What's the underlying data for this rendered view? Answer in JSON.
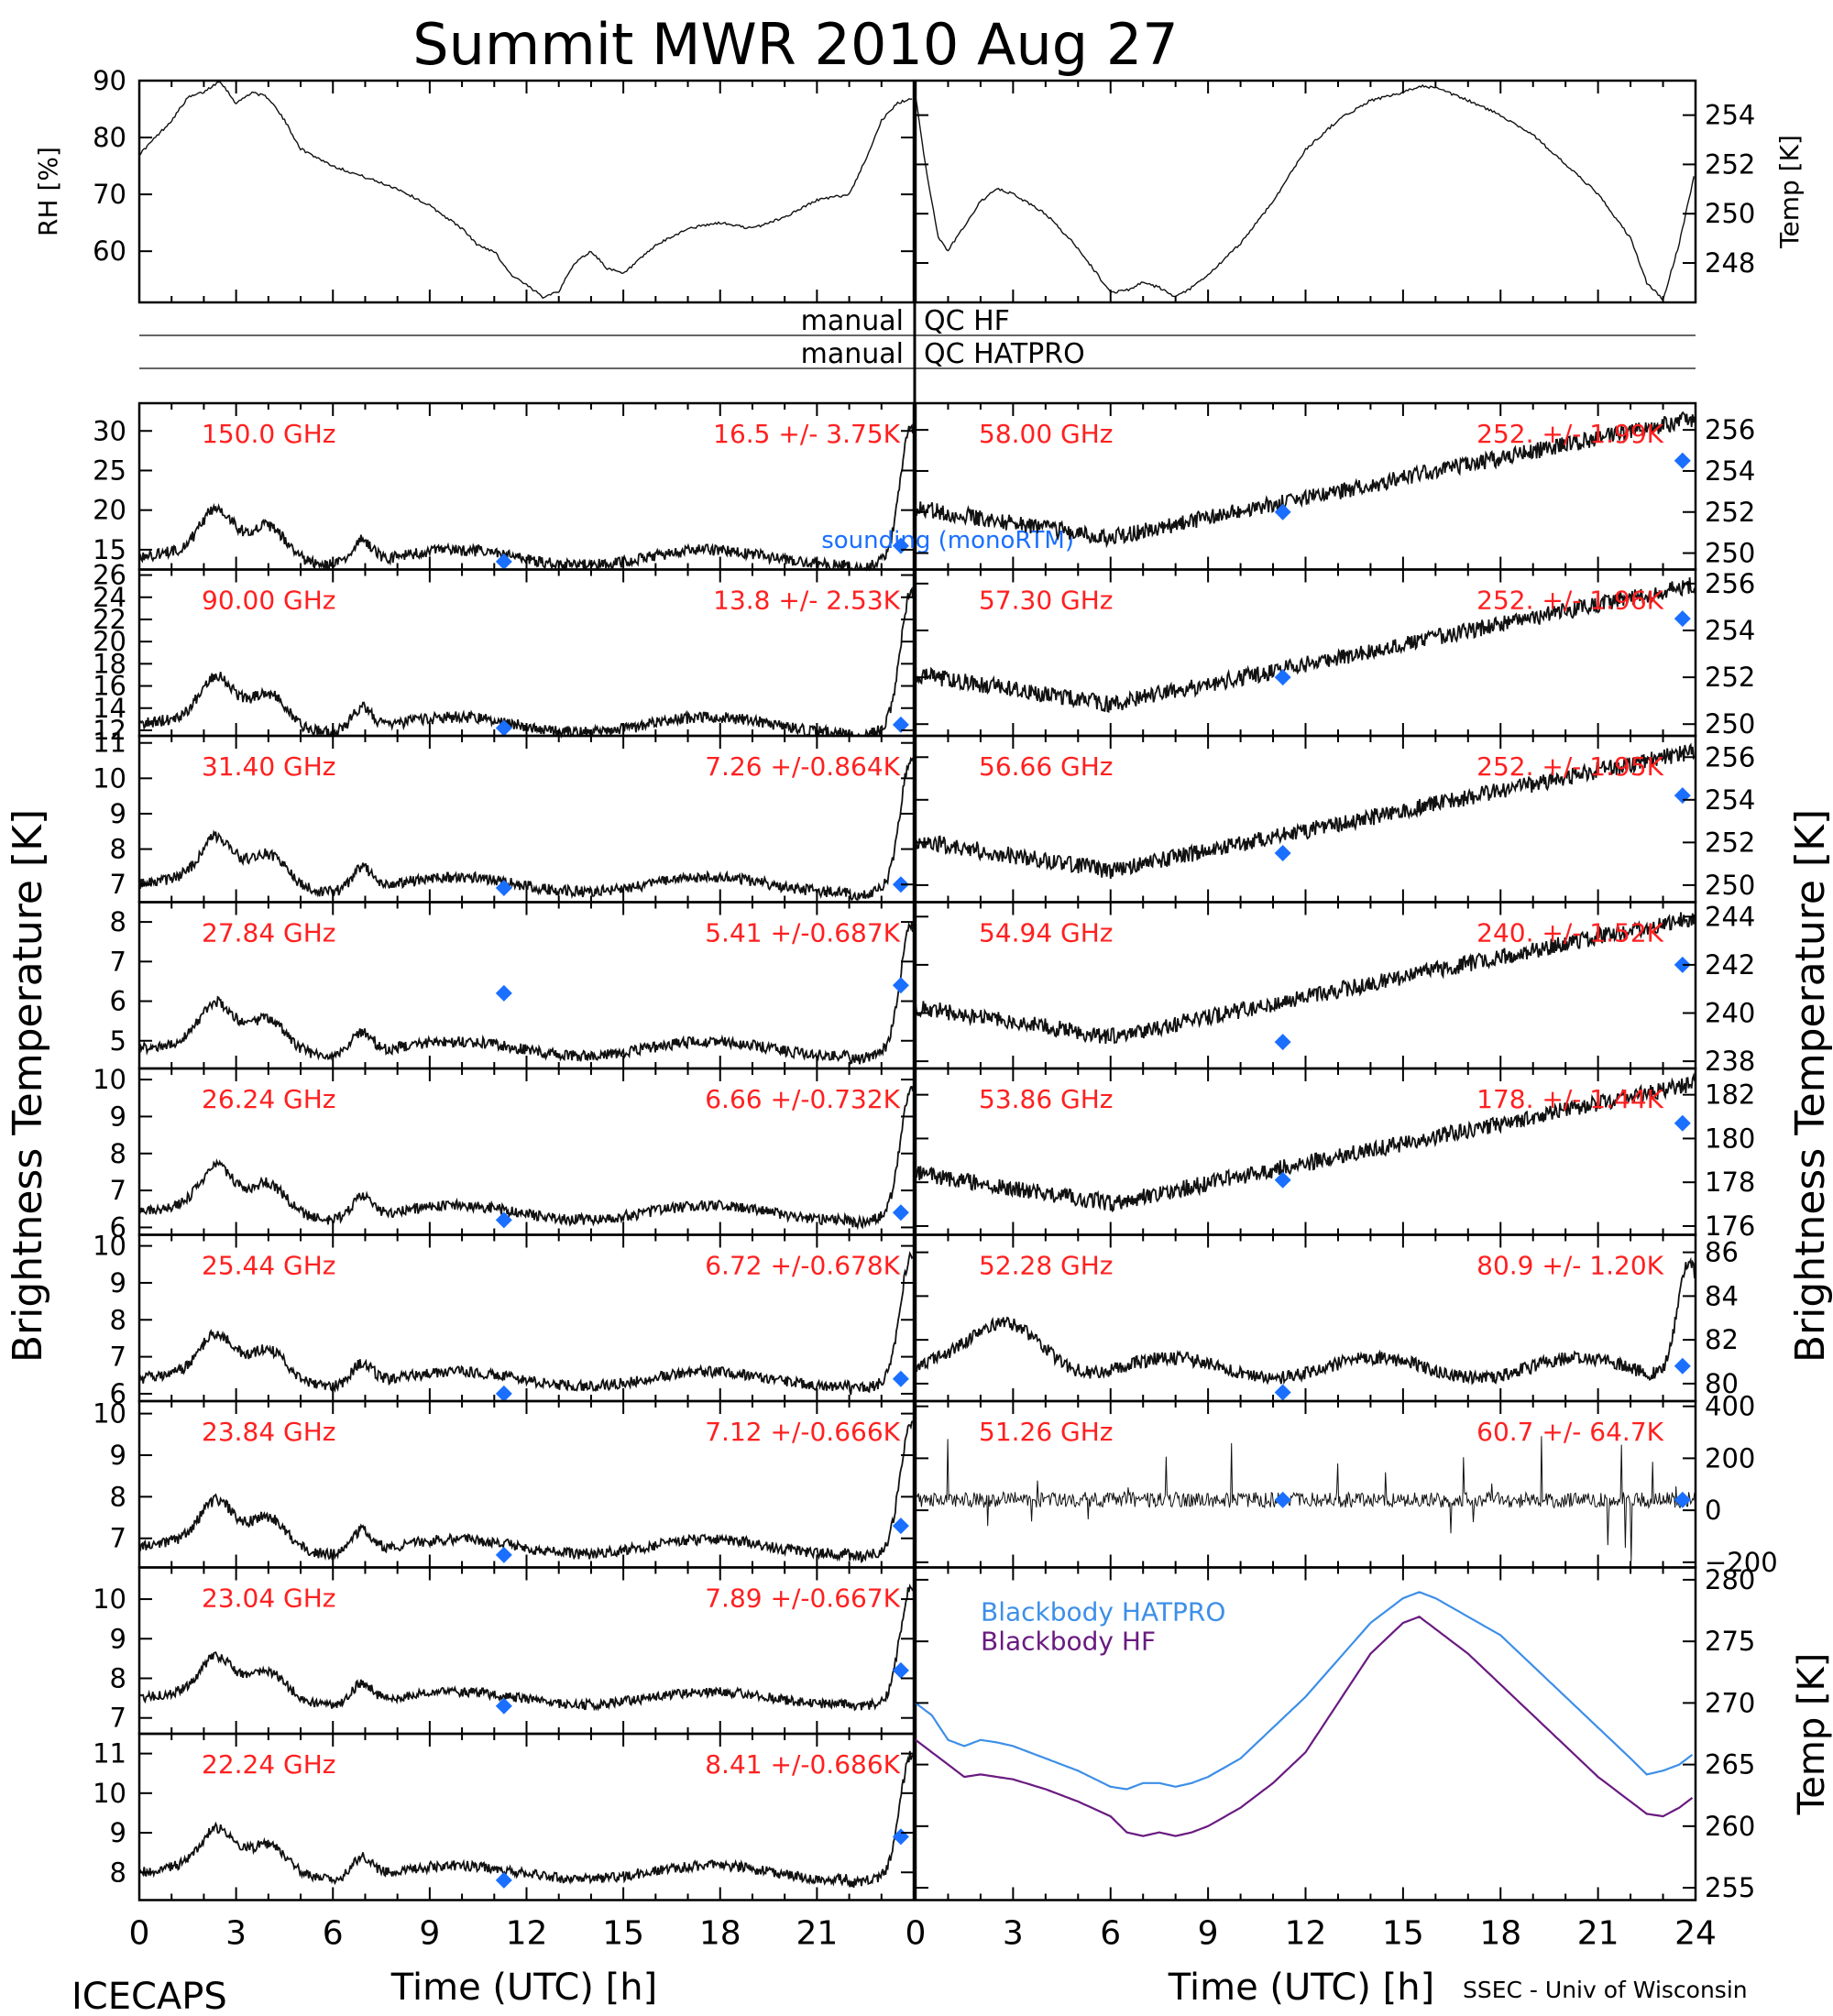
{
  "figure": {
    "title": "Summit MWR 2010 Aug 27",
    "left_ylabel": "Brightness Temperature [K]",
    "right_ylabel": "Brightness Temperature [K]",
    "footer_left": "ICECAPS",
    "footer_right": "SSEC - Univ of Wisconsin",
    "xlabel": "Time (UTC) [h]",
    "ink_color": "#000000",
    "label_color": "#ff2020",
    "marker_color": "#1a6fff",
    "hatpro_color": "#3d8fe8",
    "hf_color": "#6a1a80"
  },
  "chart_data": [
    {
      "id": "rh",
      "type": "line",
      "ylabel": "RH [%]",
      "yticks": [
        60,
        70,
        80,
        90
      ],
      "ylim": [
        51,
        90
      ],
      "xlim": [
        0,
        24
      ],
      "x": [
        0,
        0.5,
        1,
        1.5,
        2,
        2.5,
        3,
        3.5,
        4,
        4.5,
        5,
        6,
        7,
        8,
        9,
        10,
        10.5,
        11,
        11.5,
        12,
        12.5,
        13,
        13.5,
        14,
        14.5,
        15,
        16,
        17,
        18,
        19,
        20,
        21,
        22,
        22.5,
        23,
        23.5,
        24
      ],
      "values": [
        77,
        80,
        83,
        87,
        88,
        90,
        86,
        88,
        87,
        83,
        78,
        75,
        73,
        71,
        68,
        64,
        61,
        60,
        56,
        54,
        52,
        53,
        58,
        60,
        57,
        56,
        61,
        64,
        65,
        64,
        66,
        69,
        70,
        76,
        83,
        86,
        87
      ]
    },
    {
      "id": "temp",
      "type": "line",
      "ylabel": "Temp [K]",
      "yticks": [
        248,
        250,
        252,
        254
      ],
      "ylim": [
        246.4,
        255.4
      ],
      "xlim": [
        0,
        24
      ],
      "x": [
        0,
        0.3,
        0.7,
        1,
        1.5,
        2,
        2.5,
        3,
        4,
        5,
        5.5,
        6,
        6.5,
        7,
        7.5,
        8,
        8.5,
        9,
        10,
        11,
        12,
        13,
        14,
        15,
        15.5,
        16,
        17,
        18,
        19,
        20,
        21,
        22,
        22.5,
        23,
        23.5,
        24
      ],
      "values": [
        254.8,
        252,
        249,
        248.5,
        249.5,
        250.5,
        251,
        250.8,
        250,
        248.6,
        247.7,
        246.8,
        246.9,
        247.2,
        247,
        246.6,
        247,
        247.5,
        248.8,
        250.5,
        252.6,
        253.8,
        254.6,
        254.9,
        255.2,
        255.1,
        254.6,
        254,
        253.2,
        252,
        250.8,
        249,
        247.2,
        246.5,
        248.8,
        251.8
      ]
    }
  ],
  "qc": {
    "row1_left": "manual",
    "row1_right": "QC HF",
    "row2_left": "manual",
    "row2_right": "QC HATPRO"
  },
  "channels_left": [
    {
      "freq": "150.0 GHz",
      "stat": "16.5 +/-  3.75K",
      "yticks": [
        15,
        20,
        25,
        30
      ],
      "ytick_labels": [
        "15",
        "20",
        "25",
        "30"
      ],
      "ylim": [
        12.5,
        33.5
      ],
      "base": 14,
      "sounding": [
        [
          11.3,
          13.5
        ],
        [
          23.6,
          15.5
        ]
      ],
      "sounding_label": "sounding (monoRTM)"
    },
    {
      "freq": "90.00 GHz",
      "stat": "13.8 +/-  2.53K",
      "yticks": [
        12,
        14,
        16,
        18,
        20,
        22,
        24,
        26
      ],
      "ytick_labels": [
        "12",
        "14",
        "16",
        "18",
        "20",
        "22",
        "24",
        "26"
      ],
      "ylim": [
        11.5,
        26.5
      ],
      "base": 12.5,
      "sounding": [
        [
          11.3,
          12.2
        ],
        [
          23.6,
          12.5
        ]
      ]
    },
    {
      "freq": "31.40 GHz",
      "stat": "7.26 +/-0.864K",
      "yticks": [
        7,
        8,
        9,
        10,
        11
      ],
      "ytick_labels": [
        "7",
        "8",
        "9",
        "10",
        "11"
      ],
      "ylim": [
        6.5,
        11.2
      ],
      "base": 7.0,
      "sounding": [
        [
          11.3,
          6.9
        ],
        [
          23.6,
          7.0
        ]
      ]
    },
    {
      "freq": "27.84 GHz",
      "stat": "5.41 +/-0.687K",
      "yticks": [
        5,
        6,
        7,
        8
      ],
      "ytick_labels": [
        "5",
        "6",
        "7",
        "8"
      ],
      "ylim": [
        4.3,
        8.5
      ],
      "base": 4.8,
      "sounding": [
        [
          11.3,
          6.2
        ],
        [
          23.6,
          6.4
        ]
      ]
    },
    {
      "freq": "26.24 GHz",
      "stat": "6.66 +/-0.732K",
      "yticks": [
        6,
        7,
        8,
        9,
        10
      ],
      "ytick_labels": [
        "6",
        "7",
        "8",
        "9",
        "10"
      ],
      "ylim": [
        5.8,
        10.3
      ],
      "base": 6.4,
      "sounding": [
        [
          11.3,
          6.2
        ],
        [
          23.6,
          6.4
        ]
      ]
    },
    {
      "freq": "25.44 GHz",
      "stat": "6.72 +/-0.678K",
      "yticks": [
        6,
        7,
        8,
        9,
        10
      ],
      "ytick_labels": [
        "6",
        "7",
        "8",
        "9",
        "10"
      ],
      "ylim": [
        5.8,
        10.3
      ],
      "base": 6.4,
      "sounding": [
        [
          11.3,
          6.0
        ],
        [
          23.6,
          6.4
        ]
      ]
    },
    {
      "freq": "23.84 GHz",
      "stat": "7.12 +/-0.666K",
      "yticks": [
        7,
        8,
        9,
        10
      ],
      "ytick_labels": [
        "7",
        "8",
        "9",
        "10"
      ],
      "ylim": [
        6.3,
        10.3
      ],
      "base": 6.8,
      "sounding": [
        [
          11.3,
          6.6
        ],
        [
          23.6,
          7.3
        ]
      ]
    },
    {
      "freq": "23.04 GHz",
      "stat": "7.89 +/-0.667K",
      "yticks": [
        7,
        8,
        9,
        10
      ],
      "ytick_labels": [
        "7",
        "8",
        "9",
        "10"
      ],
      "ylim": [
        6.6,
        10.8
      ],
      "base": 7.5,
      "sounding": [
        [
          11.3,
          7.3
        ],
        [
          23.6,
          8.2
        ]
      ]
    },
    {
      "freq": "22.24 GHz",
      "stat": "8.41 +/-0.686K",
      "yticks": [
        8,
        9,
        10,
        11
      ],
      "ytick_labels": [
        "8",
        "9",
        "10",
        "11"
      ],
      "ylim": [
        7.3,
        11.5
      ],
      "base": 8.0,
      "sounding": [
        [
          11.3,
          7.8
        ],
        [
          23.6,
          8.9
        ]
      ]
    }
  ],
  "channels_right": [
    {
      "freq": "58.00 GHz",
      "stat": "252. +/- 1.99K",
      "yticks": [
        250,
        252,
        254,
        256
      ],
      "ytick_labels": [
        "250",
        "252",
        "254",
        "256"
      ],
      "ylim": [
        249.2,
        257.3
      ],
      "sounding": [
        [
          11.3,
          252
        ],
        [
          23.6,
          254.5
        ]
      ]
    },
    {
      "freq": "57.30 GHz",
      "stat": "252. +/- 1.96K",
      "yticks": [
        250,
        252,
        254,
        256
      ],
      "ytick_labels": [
        "250",
        "252",
        "254",
        "256"
      ],
      "ylim": [
        249.5,
        256.6
      ],
      "sounding": [
        [
          11.3,
          252
        ],
        [
          23.6,
          254.5
        ]
      ]
    },
    {
      "freq": "56.66 GHz",
      "stat": "252. +/- 1.95K",
      "yticks": [
        250,
        252,
        254,
        256
      ],
      "ytick_labels": [
        "250",
        "252",
        "254",
        "256"
      ],
      "ylim": [
        249.2,
        257
      ],
      "sounding": [
        [
          11.3,
          251.5
        ],
        [
          23.6,
          254.2
        ]
      ]
    },
    {
      "freq": "54.94 GHz",
      "stat": "240. +/- 1.52K",
      "yticks": [
        238,
        240,
        242,
        244
      ],
      "ytick_labels": [
        "238",
        "240",
        "242",
        "244"
      ],
      "ylim": [
        237.7,
        244.6
      ],
      "sounding": [
        [
          11.3,
          238.8
        ],
        [
          23.6,
          242
        ]
      ]
    },
    {
      "freq": "53.86 GHz",
      "stat": "178. +/- 1.44K",
      "yticks": [
        176,
        178,
        180,
        182
      ],
      "ytick_labels": [
        "176",
        "178",
        "180",
        "182"
      ],
      "ylim": [
        175.6,
        183.2
      ],
      "sounding": [
        [
          11.3,
          178.1
        ],
        [
          23.6,
          180.7
        ]
      ]
    },
    {
      "freq": "52.28 GHz",
      "stat": "80.9 +/- 1.20K",
      "yticks": [
        80,
        82,
        84,
        86
      ],
      "ytick_labels": [
        "80",
        "82",
        "84",
        "86"
      ],
      "ylim": [
        79.2,
        86.8
      ],
      "sounding": [
        [
          11.3,
          79.6
        ],
        [
          23.6,
          80.8
        ]
      ]
    },
    {
      "freq": "51.26 GHz",
      "stat": "60.7 +/- 64.7K",
      "yticks": [
        -200,
        0,
        200,
        400
      ],
      "ytick_labels": [
        "−200",
        "0",
        "200",
        "400"
      ],
      "ylim": [
        -220,
        420
      ],
      "sounding": [
        [
          11.3,
          40
        ],
        [
          23.6,
          40
        ]
      ]
    }
  ],
  "blackbody": {
    "ylabel": "Temp [K]",
    "yticks": [
      255,
      260,
      265,
      270,
      275,
      280
    ],
    "ylim": [
      254,
      281
    ],
    "legend": [
      "Blackbody HATPRO",
      "Blackbody HF"
    ],
    "x": [
      0,
      0.5,
      1,
      1.5,
      2,
      2.5,
      3,
      4,
      5,
      6,
      6.5,
      7,
      7.5,
      8,
      8.5,
      9,
      10,
      11,
      12,
      13,
      14,
      15,
      15.5,
      16,
      17,
      18,
      19,
      20,
      21,
      22,
      22.5,
      23,
      23.5,
      24
    ],
    "hatpro": [
      270,
      269,
      267,
      266.5,
      267,
      266.8,
      266.5,
      265.5,
      264.5,
      263.2,
      263,
      263.5,
      263.5,
      263.2,
      263.5,
      264,
      265.5,
      268,
      270.5,
      273.5,
      276.5,
      278.5,
      279,
      278.5,
      277,
      275.5,
      273,
      270.5,
      268,
      265.5,
      264.2,
      264.5,
      265,
      266
    ],
    "hf": [
      267,
      266,
      265,
      264,
      264.2,
      264,
      263.8,
      263,
      262,
      260.8,
      259.5,
      259.2,
      259.5,
      259.2,
      259.5,
      260,
      261.5,
      263.5,
      266,
      270,
      274,
      276.5,
      277,
      276,
      274,
      271.5,
      269,
      266.5,
      264,
      262,
      261,
      260.8,
      261.5,
      262.5
    ]
  },
  "xaxis": {
    "ticks": [
      0,
      3,
      6,
      9,
      12,
      15,
      18,
      21
    ],
    "ticks_right": [
      0,
      3,
      6,
      9,
      12,
      15,
      18,
      21,
      24
    ],
    "labels_left": [
      "0",
      "3",
      "6",
      "9",
      "12",
      "15",
      "18",
      "21"
    ],
    "labels_right": [
      "0",
      "3",
      "6",
      "9",
      "12",
      "15",
      "18",
      "21",
      "24"
    ]
  }
}
